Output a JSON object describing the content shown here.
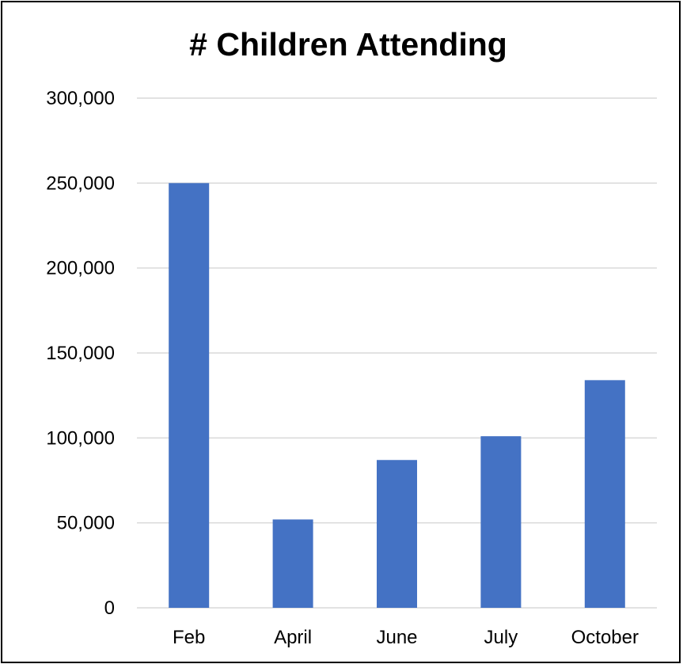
{
  "chart_data": {
    "type": "bar",
    "title": "# Children Attending",
    "xlabel": "",
    "ylabel": "",
    "categories": [
      "Feb",
      "April",
      "June",
      "July",
      "October"
    ],
    "values": [
      250000,
      52000,
      87000,
      101000,
      134000
    ],
    "ylim": [
      0,
      300000
    ],
    "yticks": [
      0,
      50000,
      100000,
      150000,
      200000,
      250000,
      300000
    ],
    "ytick_labels": [
      "0",
      "50,000",
      "100,000",
      "150,000",
      "200,000",
      "250,000",
      "300,000"
    ],
    "grid": true,
    "legend": "none",
    "colors": {
      "bar": "#4472C4",
      "grid": "#d9d9d9",
      "border": "#000000"
    }
  }
}
